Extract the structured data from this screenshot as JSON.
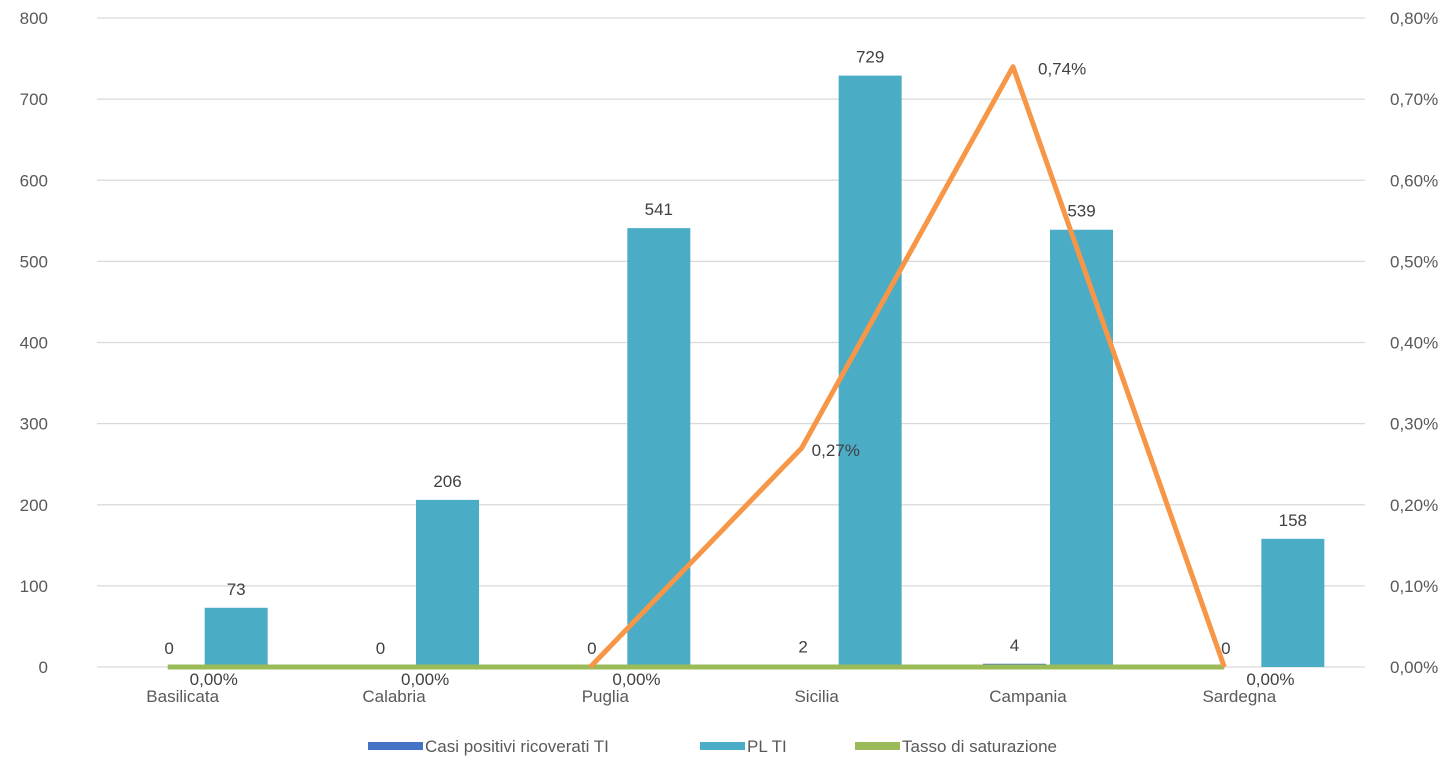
{
  "chart_data": {
    "type": "bar",
    "categories": [
      "Basilicata",
      "Calabria",
      "Puglia",
      "Sicilia",
      "Campania",
      "Sardegna"
    ],
    "series": [
      {
        "name": "Casi positivi ricoverati TI",
        "kind": "bar",
        "axis": "left",
        "color": "#4472c4",
        "values": [
          0,
          0,
          0,
          2,
          4,
          0
        ],
        "labels": [
          "0",
          "0",
          "0",
          "2",
          "4",
          "0"
        ]
      },
      {
        "name": "PL TI",
        "kind": "bar",
        "axis": "left",
        "color": "#4bacc6",
        "values": [
          73,
          206,
          541,
          729,
          539,
          158
        ],
        "labels": [
          "73",
          "206",
          "541",
          "729",
          "539",
          "158"
        ]
      },
      {
        "name": "Tasso di saturazione",
        "kind": "line",
        "axis": "right",
        "color": "#9bbb59",
        "values": [
          0,
          0,
          0,
          0,
          0,
          0
        ],
        "labels": [
          "0,00%",
          "0,00%",
          "0,00%",
          "",
          "",
          "0,00%"
        ]
      },
      {
        "kind": "line",
        "axis": "right",
        "color": "#f79646",
        "values": [
          null,
          null,
          0,
          0.27,
          0.74,
          0
        ],
        "labels": [
          "",
          "",
          "",
          "0,27%",
          "0,74%",
          ""
        ]
      }
    ],
    "y_left": {
      "min": 0,
      "max": 800,
      "ticks": [
        0,
        100,
        200,
        300,
        400,
        500,
        600,
        700,
        800
      ],
      "tick_labels": [
        "0",
        "100",
        "200",
        "300",
        "400",
        "500",
        "600",
        "700",
        "800"
      ]
    },
    "y_right": {
      "min": 0,
      "max": 0.8,
      "ticks": [
        0,
        0.1,
        0.2,
        0.3,
        0.4,
        0.5,
        0.6,
        0.7,
        0.8
      ],
      "tick_labels": [
        "0,00%",
        "0,10%",
        "0,20%",
        "0,30%",
        "0,40%",
        "0,50%",
        "0,60%",
        "0,70%",
        "0,80%"
      ]
    },
    "grid": true,
    "gridline_color": "#d9d9d9",
    "legend": {
      "position": "bottom",
      "entries": [
        "Casi positivi ricoverati TI",
        "PL TI",
        "Tasso di saturazione"
      ]
    }
  }
}
